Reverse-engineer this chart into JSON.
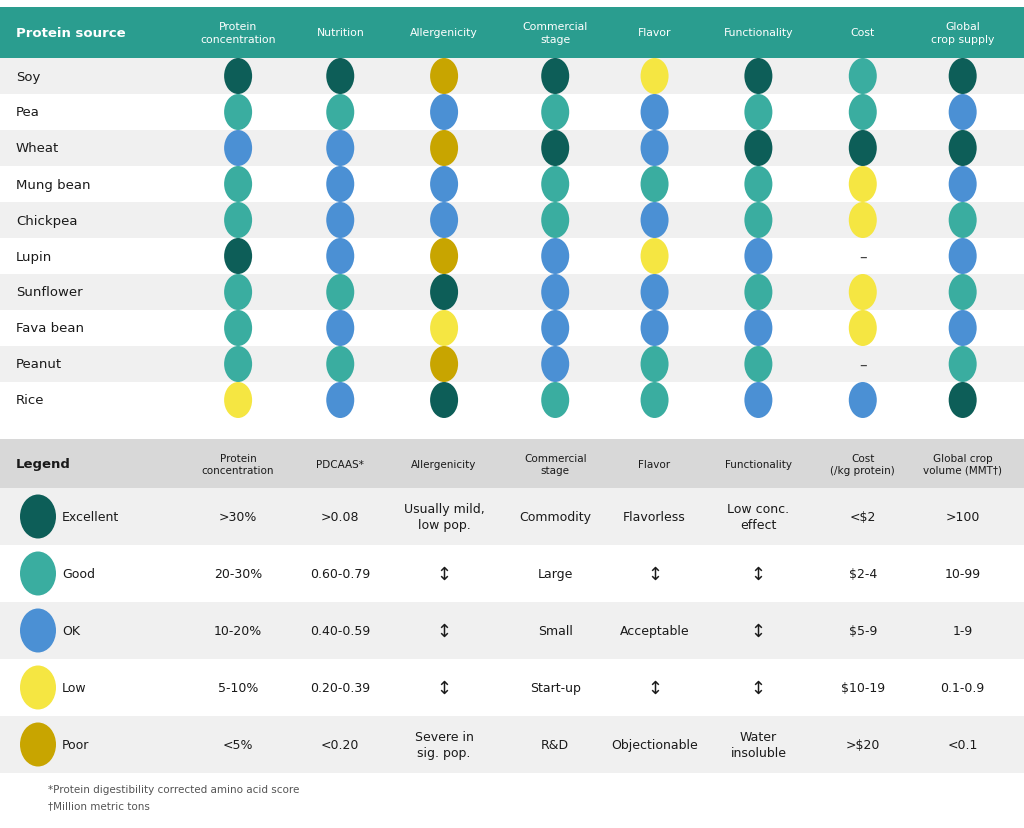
{
  "header_bg": "#2a9d8f",
  "row_bg_odd": "#f0f0f0",
  "row_bg_even": "#ffffff",
  "legend_header_bg": "#d8d8d8",
  "legend_row_bg_odd": "#f0f0f0",
  "legend_row_bg_even": "#ffffff",
  "outer_bg": "#ffffff",
  "colors": {
    "excellent": "#0d5e58",
    "good": "#3aada0",
    "ok": "#4b90d4",
    "low": "#f5e642",
    "poor": "#c8a500"
  },
  "col_headers": [
    "Protein source",
    "Protein\nconcentration",
    "Nutrition",
    "Allergenicity",
    "Commercial\nstage",
    "Flavor",
    "Functionality",
    "Cost",
    "Global\ncrop supply"
  ],
  "protein_sources": [
    "Soy",
    "Pea",
    "Wheat",
    "Mung bean",
    "Chickpea",
    "Lupin",
    "Sunflower",
    "Fava bean",
    "Peanut",
    "Rice"
  ],
  "data": {
    "Soy": [
      "excellent",
      "excellent",
      "poor",
      "excellent",
      "low",
      "excellent",
      "good",
      "excellent"
    ],
    "Pea": [
      "good",
      "good",
      "ok",
      "good",
      "ok",
      "good",
      "good",
      "ok"
    ],
    "Wheat": [
      "ok",
      "ok",
      "poor",
      "excellent",
      "ok",
      "excellent",
      "excellent",
      "excellent"
    ],
    "Mung bean": [
      "good",
      "ok",
      "ok",
      "good",
      "good",
      "good",
      "low",
      "ok"
    ],
    "Chickpea": [
      "good",
      "ok",
      "ok",
      "good",
      "ok",
      "good",
      "low",
      "good"
    ],
    "Lupin": [
      "excellent",
      "ok",
      "poor",
      "ok",
      "low",
      "ok",
      "none",
      "ok"
    ],
    "Sunflower": [
      "good",
      "good",
      "excellent",
      "ok",
      "ok",
      "good",
      "low",
      "good"
    ],
    "Fava bean": [
      "good",
      "ok",
      "low",
      "ok",
      "ok",
      "ok",
      "low",
      "ok"
    ],
    "Peanut": [
      "good",
      "good",
      "poor",
      "ok",
      "good",
      "good",
      "none",
      "good"
    ],
    "Rice": [
      "low",
      "ok",
      "excellent",
      "good",
      "good",
      "ok",
      "ok",
      "excellent"
    ]
  },
  "legend_col_headers": [
    "Legend",
    "Protein\nconcentration",
    "PDCAAS*",
    "Allergenicity",
    "Commercial\nstage",
    "Flavor",
    "Functionality",
    "Cost\n(/kg protein)",
    "Global crop\nvolume (MMT†)"
  ],
  "legend_rows": [
    {
      "level": "Excellent",
      "color": "excellent",
      "vals": [
        ">30%",
        ">0.08",
        "Usually mild,\nlow pop.",
        "Commodity",
        "Flavorless",
        "Low conc.\neffect",
        "<$2",
        ">100"
      ]
    },
    {
      "level": "Good",
      "color": "good",
      "vals": [
        "20-30%",
        "0.60-0.79",
        "↕",
        "Large",
        "↕",
        "↕",
        "$2-4",
        "10-99"
      ]
    },
    {
      "level": "OK",
      "color": "ok",
      "vals": [
        "10-20%",
        "0.40-0.59",
        "↕",
        "Small",
        "Acceptable",
        "↕",
        "$5-9",
        "1-9"
      ]
    },
    {
      "level": "Low",
      "color": "low",
      "vals": [
        "5-10%",
        "0.20-0.39",
        "↕",
        "Start-up",
        "↕",
        "↕",
        "$10-19",
        "0.1-0.9"
      ]
    },
    {
      "level": "Poor",
      "color": "poor",
      "vals": [
        "<5%",
        "<0.20",
        "Severe in\nsig. pop.",
        "R&D",
        "Objectionable",
        "Water\ninsoluble",
        ">$20",
        "<0.1"
      ]
    }
  ],
  "footnotes": [
    "*Protein digestibility corrected amino acid score",
    "†Million metric tons"
  ]
}
